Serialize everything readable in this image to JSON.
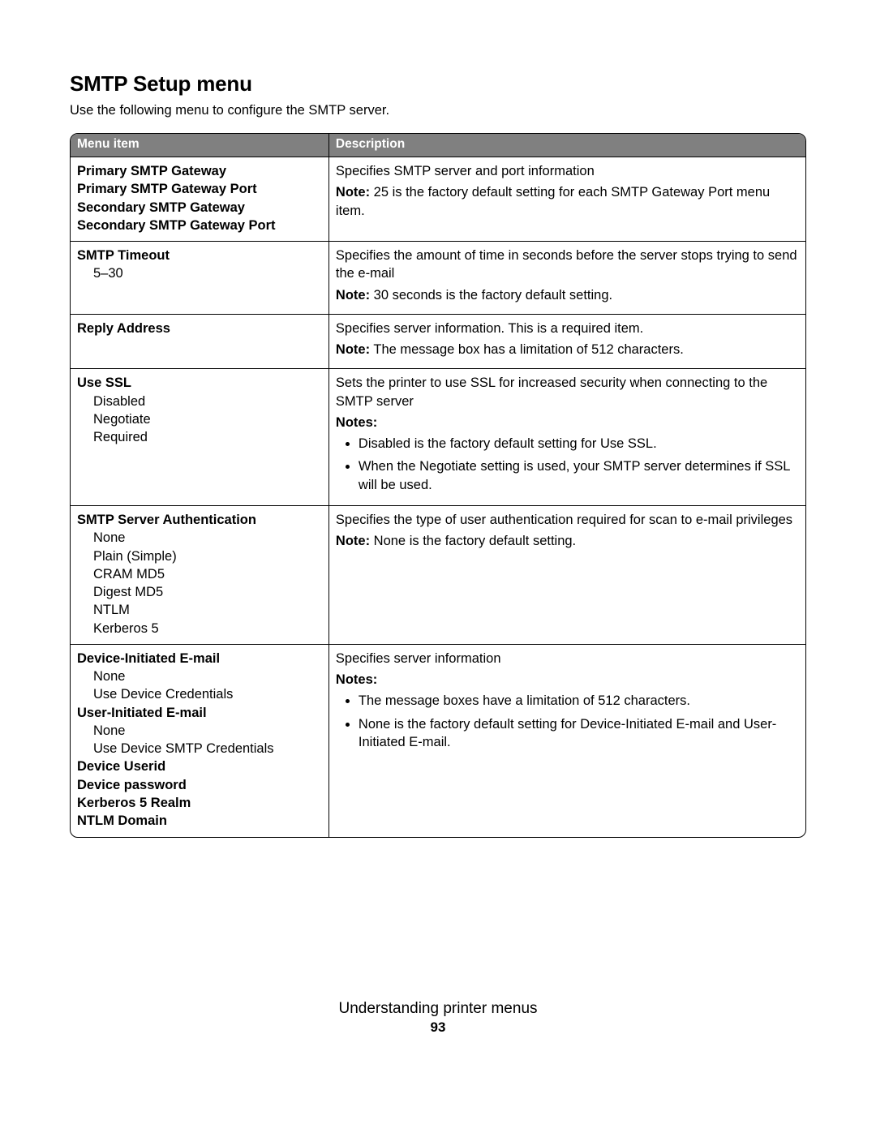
{
  "title": "SMTP Setup menu",
  "intro": "Use the following menu to configure the SMTP server.",
  "headers": {
    "col1": "Menu item",
    "col2": "Description"
  },
  "colors": {
    "header_bg": "#808080",
    "header_text": "#ffffff",
    "border": "#000000",
    "page_bg": "#ffffff",
    "text": "#000000"
  },
  "rows": {
    "r1": {
      "items": {
        "a": "Primary SMTP Gateway",
        "b": "Primary SMTP Gateway Port",
        "c": "Secondary SMTP Gateway",
        "d": "Secondary SMTP Gateway Port"
      },
      "desc": {
        "p1": "Specifies SMTP server and port information",
        "noteLabel": "Note:",
        "noteText": " 25 is the factory default setting for each SMTP Gateway Port menu item."
      }
    },
    "r2": {
      "item": "SMTP Timeout",
      "opt1": "5–30",
      "desc": {
        "p1": "Specifies the amount of time in seconds before the server stops trying to send the e-mail",
        "noteLabel": "Note:",
        "noteText": " 30 seconds is the factory default setting."
      }
    },
    "r3": {
      "item": "Reply Address",
      "desc": {
        "p1": "Specifies server information. This is a required item.",
        "noteLabel": "Note:",
        "noteText": " The message box has a limitation of 512 characters."
      }
    },
    "r4": {
      "item": "Use SSL",
      "opt1": "Disabled",
      "opt2": "Negotiate",
      "opt3": "Required",
      "desc": {
        "p1": "Sets the printer to use SSL for increased security when connecting to the SMTP server",
        "notesLabel": "Notes:",
        "n1": "Disabled is the factory default setting for Use SSL.",
        "n2": "When the Negotiate setting is used, your SMTP server determines if SSL will be used."
      }
    },
    "r5": {
      "item": "SMTP Server Authentication",
      "opt1": "None",
      "opt2": "Plain (Simple)",
      "opt3": "CRAM MD5",
      "opt4": "Digest MD5",
      "opt5": "NTLM",
      "opt6": "Kerberos 5",
      "desc": {
        "p1": "Specifies the type of user authentication required for scan to e-mail privileges",
        "noteLabel": "Note:",
        "noteText": " None is the factory default setting."
      }
    },
    "r6": {
      "itemA": "Device-Initiated E-mail",
      "optA1": "None",
      "optA2": "Use Device Credentials",
      "itemB": "User-Initiated E-mail",
      "optB1": "None",
      "optB2": "Use Device SMTP Credentials",
      "itemC": "Device Userid",
      "itemD": "Device password",
      "itemE": "Kerberos 5 Realm",
      "itemF": "NTLM Domain",
      "desc": {
        "p1": "Specifies server information",
        "notesLabel": "Notes:",
        "n1": "The message boxes have a limitation of 512 characters.",
        "n2": "None is the factory default setting for Device-Initiated E-mail and User-Initiated E-mail."
      }
    }
  },
  "footer": {
    "title": "Understanding printer menus",
    "page": "93"
  }
}
